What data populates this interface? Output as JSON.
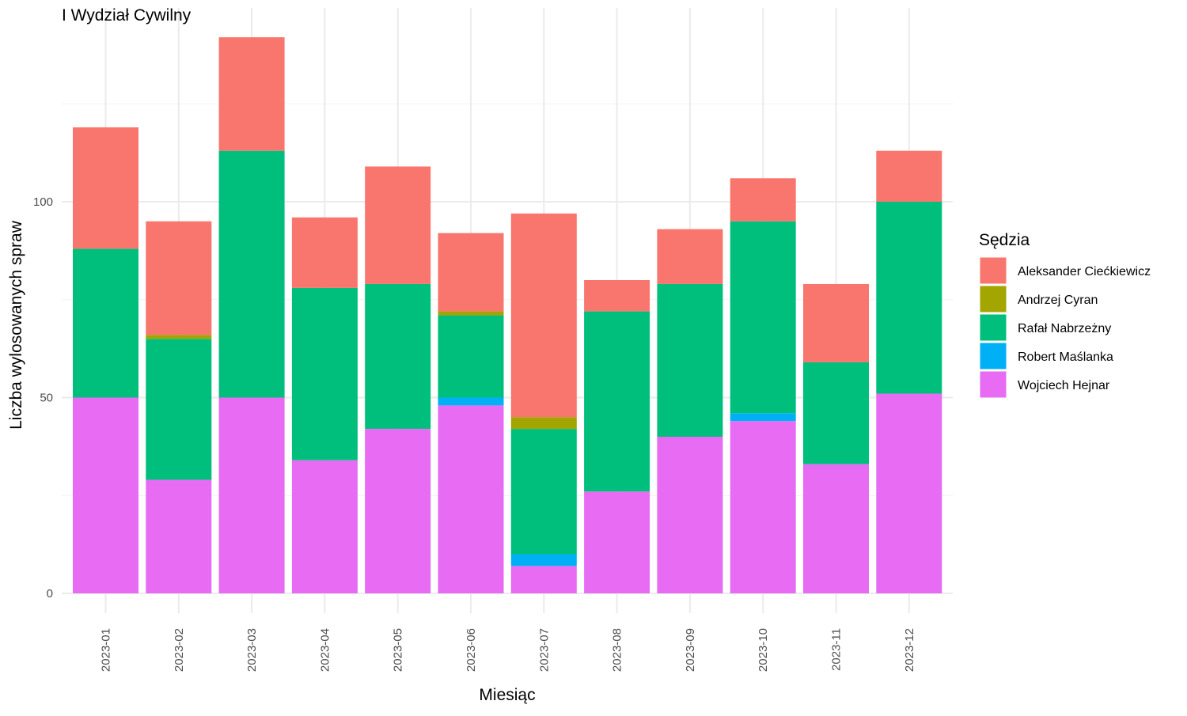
{
  "chart_data": {
    "type": "bar",
    "stacked": true,
    "title": "I Wydział Cywilny",
    "xlabel": "Miesiąc",
    "ylabel": "Liczba wylosowanych spraw",
    "ylim": [
      0,
      145
    ],
    "yticks": [
      0,
      50,
      100
    ],
    "grid": true,
    "legend_position": "right",
    "legend_title": "Sędzia",
    "categories": [
      "2023-01",
      "2023-02",
      "2023-03",
      "2023-04",
      "2023-05",
      "2023-06",
      "2023-07",
      "2023-08",
      "2023-09",
      "2023-10",
      "2023-11",
      "2023-12"
    ],
    "series": [
      {
        "name": "Wojciech Hejnar",
        "color": "#E76BF3",
        "values": [
          50,
          29,
          50,
          34,
          42,
          48,
          7,
          26,
          40,
          44,
          33,
          51
        ]
      },
      {
        "name": "Robert Maślanka",
        "color": "#00B0F6",
        "values": [
          0,
          0,
          0,
          0,
          0,
          2,
          3,
          0,
          0,
          2,
          0,
          0
        ]
      },
      {
        "name": "Rafał Nabrzeżny",
        "color": "#00BF7D",
        "values": [
          38,
          36,
          63,
          44,
          37,
          21,
          32,
          46,
          39,
          49,
          26,
          49
        ]
      },
      {
        "name": "Andrzej Cyran",
        "color": "#A3A500",
        "values": [
          0,
          1,
          0,
          0,
          0,
          1,
          3,
          0,
          0,
          0,
          0,
          0
        ]
      },
      {
        "name": "Aleksander Ciećkiewicz",
        "color": "#F8766D",
        "values": [
          31,
          29,
          29,
          18,
          30,
          20,
          52,
          8,
          14,
          11,
          20,
          13
        ]
      }
    ],
    "legend_order": [
      "Aleksander Ciećkiewicz",
      "Andrzej Cyran",
      "Rafał Nabrzeżny",
      "Robert Maślanka",
      "Wojciech Hejnar"
    ]
  }
}
